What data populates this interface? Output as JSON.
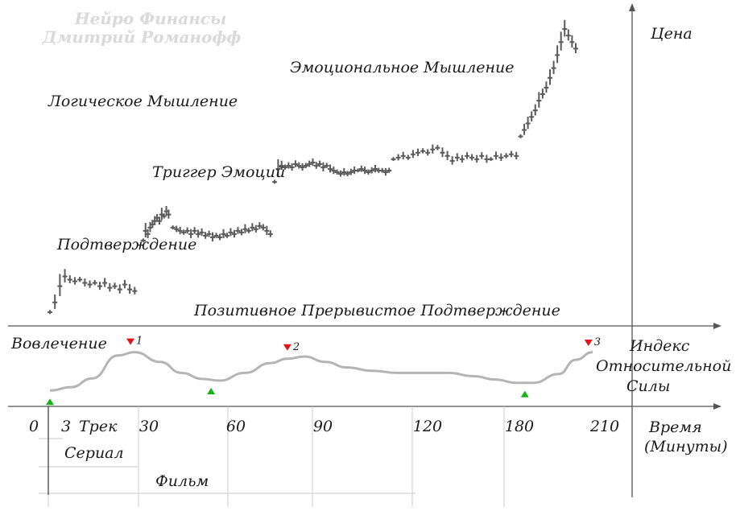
{
  "watermark": {
    "line1": "Нейро Финансы",
    "line2": "Дмитрий Романофф"
  },
  "labels": {
    "price_axis": "Цена",
    "emotional": "Эмоциональное Мышление",
    "logical": "Логическое Мышление",
    "trigger": "Триггер Эмоций",
    "confirmation": "Подтверждение",
    "positive": "Позитивное Прерывистое Подтверждение",
    "engagement": "Вовлечение",
    "rsi_line1": "Индекс",
    "rsi_line2": "Относительной",
    "rsi_line3": "Силы",
    "time_line1": "Время",
    "time_line2": "(Минуты)",
    "track": "Трек",
    "serial": "Сериал",
    "film": "Фильм"
  },
  "chart_data": {
    "type": "line",
    "x_ticks": [
      "0",
      "3",
      "30",
      "60",
      "90",
      "120",
      "180",
      "210"
    ],
    "price_segments": [
      {
        "t0": 0,
        "t1": 20,
        "lo": 0,
        "hi": 13,
        "values": [
          1,
          4,
          9,
          12,
          11,
          10.5,
          11,
          10,
          9.5,
          10,
          9,
          10,
          8.5,
          9,
          8,
          9.5,
          8,
          7.5
        ]
      },
      {
        "t0": 22,
        "t1": 28,
        "lo": 20,
        "hi": 33,
        "values": [
          23,
          26,
          25,
          27,
          28,
          29,
          30,
          29,
          31,
          30.5,
          32,
          31
        ]
      },
      {
        "t0": 29,
        "t1": 52,
        "lo": 23,
        "hi": 30,
        "values": [
          27,
          26.5,
          26,
          25.5,
          26,
          25,
          26,
          25,
          25.5,
          24.5,
          25,
          24,
          24.5,
          24,
          25,
          24.5,
          25.5,
          25,
          26,
          25.5,
          26.5,
          26,
          27,
          26.5,
          27.5,
          27,
          26,
          25
        ]
      },
      {
        "t0": 53,
        "t1": 80,
        "lo": 40,
        "hi": 48,
        "values": [
          41,
          45,
          46,
          45.5,
          46,
          45.5,
          46.5,
          46,
          45.5,
          46,
          46.5,
          47,
          46,
          46.5,
          45.5,
          46,
          45,
          44.5,
          44,
          43.5,
          44,
          43.5,
          44,
          44.5,
          44.5,
          45,
          44.5,
          44,
          44.5,
          45,
          44.5,
          44.5,
          44,
          44.5
        ]
      },
      {
        "t0": 81,
        "t1": 103,
        "lo": 46,
        "hi": 55,
        "values": [
          48,
          48.5,
          49,
          48.5,
          49.5,
          50,
          50.5,
          50,
          51,
          51.5,
          50,
          49,
          47.5,
          48.5,
          48,
          49,
          48.5,
          48,
          49,
          48
        ]
      },
      {
        "t0": 104,
        "t1": 110,
        "lo": 46,
        "hi": 51,
        "values": [
          48,
          49,
          48.5,
          49,
          49.5,
          49
        ]
      },
      {
        "t0": 111,
        "t1": 124,
        "lo": 50,
        "hi": 90,
        "values": [
          55,
          57,
          59,
          61,
          63,
          66,
          68,
          70,
          73,
          76,
          80,
          84,
          88,
          86,
          84,
          82
        ]
      }
    ],
    "rsi": {
      "ylim": [
        0,
        100
      ],
      "points": [
        [
          0,
          10
        ],
        [
          5,
          16
        ],
        [
          10,
          32
        ],
        [
          16,
          74
        ],
        [
          20,
          80
        ],
        [
          26,
          62
        ],
        [
          31,
          42
        ],
        [
          36,
          31
        ],
        [
          40,
          28
        ],
        [
          46,
          42
        ],
        [
          52,
          60
        ],
        [
          56,
          68
        ],
        [
          60,
          72
        ],
        [
          65,
          62
        ],
        [
          70,
          52
        ],
        [
          76,
          46
        ],
        [
          82,
          42
        ],
        [
          88,
          42
        ],
        [
          94,
          42
        ],
        [
          100,
          36
        ],
        [
          105,
          30
        ],
        [
          110,
          24
        ],
        [
          114,
          24
        ],
        [
          120,
          40
        ],
        [
          124,
          66
        ],
        [
          128,
          80
        ]
      ]
    },
    "signals": [
      {
        "t": 0,
        "kind": "buy",
        "label": ""
      },
      {
        "t": 19,
        "kind": "sell",
        "label": "1"
      },
      {
        "t": 38,
        "kind": "buy",
        "label": ""
      },
      {
        "t": 56,
        "kind": "sell",
        "label": "2"
      },
      {
        "t": 112,
        "kind": "buy",
        "label": ""
      },
      {
        "t": 127,
        "kind": "sell",
        "label": "3"
      }
    ],
    "colors": {
      "buy": "#16b316",
      "sell": "#e01414",
      "bars": "#5a5a5a",
      "rsi": "#b4b4b4"
    }
  }
}
